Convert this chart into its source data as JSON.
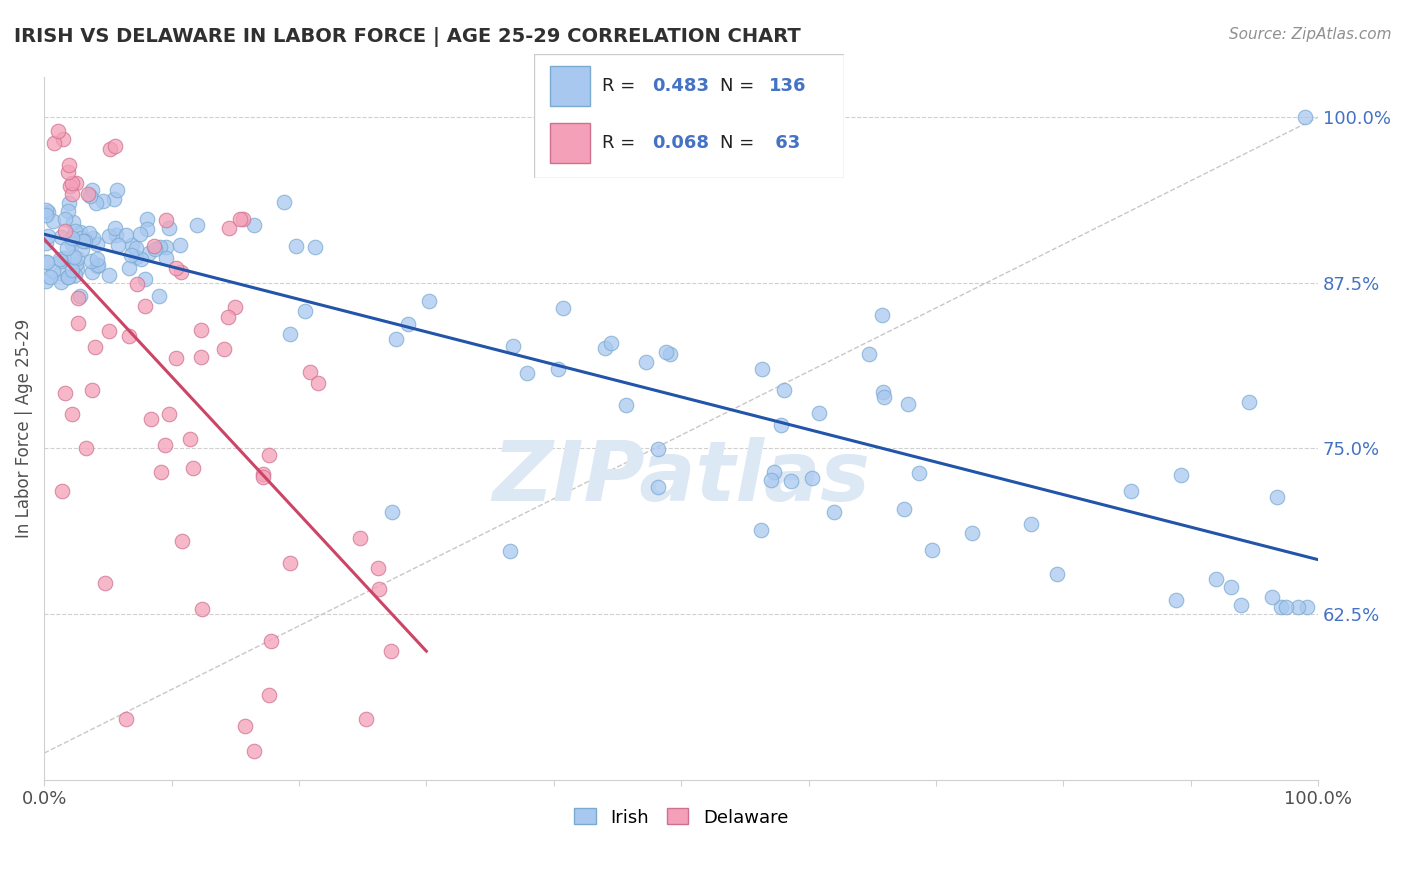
{
  "title": "IRISH VS DELAWARE IN LABOR FORCE | AGE 25-29 CORRELATION CHART",
  "source": "Source: ZipAtlas.com",
  "ylabel": "In Labor Force | Age 25-29",
  "xlim": [
    0.0,
    1.0
  ],
  "ylim": [
    0.5,
    1.03
  ],
  "yticks": [
    0.625,
    0.75,
    0.875,
    1.0
  ],
  "ytick_labels": [
    "62.5%",
    "75.0%",
    "87.5%",
    "100.0%"
  ],
  "legend_irish_R": "0.483",
  "legend_irish_N": "136",
  "legend_delaware_R": "0.068",
  "legend_delaware_N": " 63",
  "irish_color": "#a8c8f0",
  "irish_edge_color": "#7aaad0",
  "delaware_color": "#f4a0b8",
  "delaware_edge_color": "#d07090",
  "irish_line_color": "#2255aa",
  "delaware_line_color": "#cc4466",
  "dashed_line_color": "#c8c8c8",
  "background_color": "#ffffff",
  "title_color": "#303030",
  "source_color": "#909090",
  "right_label_color": "#4472c4",
  "watermark_color": "#dde8f5"
}
